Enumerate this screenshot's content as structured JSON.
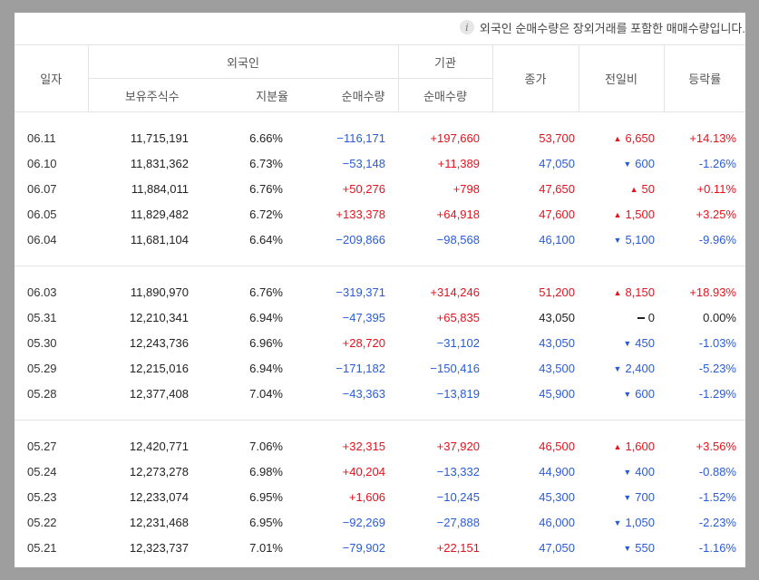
{
  "notice": "외국인 순매수량은 장외거래를 포함한 매매수량입니다.",
  "headers": {
    "date": "일자",
    "foreign": "외국인",
    "institution": "기관",
    "holdings": "보유주식수",
    "ratio": "지분율",
    "foreign_net": "순매수량",
    "inst_net": "순매수량",
    "close": "종가",
    "change": "전일비",
    "rate": "등락률"
  },
  "groups": [
    [
      {
        "date": "06.11",
        "holdings": "11,715,191",
        "ratio": "6.66%",
        "fnet": "−116,171",
        "fdir": "blue",
        "inet": "+197,660",
        "idir": "red",
        "close": "53,700",
        "cdir": "red",
        "arrow": "▲",
        "change": "6,650",
        "rate": "+14.13%"
      },
      {
        "date": "06.10",
        "holdings": "11,831,362",
        "ratio": "6.73%",
        "fnet": "−53,148",
        "fdir": "blue",
        "inet": "+11,389",
        "idir": "red",
        "close": "47,050",
        "cdir": "blue",
        "arrow": "▼",
        "change": "600",
        "rate": "-1.26%"
      },
      {
        "date": "06.07",
        "holdings": "11,884,011",
        "ratio": "6.76%",
        "fnet": "+50,276",
        "fdir": "red",
        "inet": "+798",
        "idir": "red",
        "close": "47,650",
        "cdir": "red",
        "arrow": "▲",
        "change": "50",
        "rate": "+0.11%"
      },
      {
        "date": "06.05",
        "holdings": "11,829,482",
        "ratio": "6.72%",
        "fnet": "+133,378",
        "fdir": "red",
        "inet": "+64,918",
        "idir": "red",
        "close": "47,600",
        "cdir": "red",
        "arrow": "▲",
        "change": "1,500",
        "rate": "+3.25%"
      },
      {
        "date": "06.04",
        "holdings": "11,681,104",
        "ratio": "6.64%",
        "fnet": "−209,866",
        "fdir": "blue",
        "inet": "−98,568",
        "idir": "blue",
        "close": "46,100",
        "cdir": "blue",
        "arrow": "▼",
        "change": "5,100",
        "rate": "-9.96%"
      }
    ],
    [
      {
        "date": "06.03",
        "holdings": "11,890,970",
        "ratio": "6.76%",
        "fnet": "−319,371",
        "fdir": "blue",
        "inet": "+314,246",
        "idir": "red",
        "close": "51,200",
        "cdir": "red",
        "arrow": "▲",
        "change": "8,150",
        "rate": "+18.93%"
      },
      {
        "date": "05.31",
        "holdings": "12,210,341",
        "ratio": "6.94%",
        "fnet": "−47,395",
        "fdir": "blue",
        "inet": "+65,835",
        "idir": "red",
        "close": "43,050",
        "cdir": "black",
        "arrow": "",
        "change": "0",
        "rate": "0.00%"
      },
      {
        "date": "05.30",
        "holdings": "12,243,736",
        "ratio": "6.96%",
        "fnet": "+28,720",
        "fdir": "red",
        "inet": "−31,102",
        "idir": "blue",
        "close": "43,050",
        "cdir": "blue",
        "arrow": "▼",
        "change": "450",
        "rate": "-1.03%"
      },
      {
        "date": "05.29",
        "holdings": "12,215,016",
        "ratio": "6.94%",
        "fnet": "−171,182",
        "fdir": "blue",
        "inet": "−150,416",
        "idir": "blue",
        "close": "43,500",
        "cdir": "blue",
        "arrow": "▼",
        "change": "2,400",
        "rate": "-5.23%"
      },
      {
        "date": "05.28",
        "holdings": "12,377,408",
        "ratio": "7.04%",
        "fnet": "−43,363",
        "fdir": "blue",
        "inet": "−13,819",
        "idir": "blue",
        "close": "45,900",
        "cdir": "blue",
        "arrow": "▼",
        "change": "600",
        "rate": "-1.29%"
      }
    ],
    [
      {
        "date": "05.27",
        "holdings": "12,420,771",
        "ratio": "7.06%",
        "fnet": "+32,315",
        "fdir": "red",
        "inet": "+37,920",
        "idir": "red",
        "close": "46,500",
        "cdir": "red",
        "arrow": "▲",
        "change": "1,600",
        "rate": "+3.56%"
      },
      {
        "date": "05.24",
        "holdings": "12,273,278",
        "ratio": "6.98%",
        "fnet": "+40,204",
        "fdir": "red",
        "inet": "−13,332",
        "idir": "blue",
        "close": "44,900",
        "cdir": "blue",
        "arrow": "▼",
        "change": "400",
        "rate": "-0.88%"
      },
      {
        "date": "05.23",
        "holdings": "12,233,074",
        "ratio": "6.95%",
        "fnet": "+1,606",
        "fdir": "red",
        "inet": "−10,245",
        "idir": "blue",
        "close": "45,300",
        "cdir": "blue",
        "arrow": "▼",
        "change": "700",
        "rate": "-1.52%"
      },
      {
        "date": "05.22",
        "holdings": "12,231,468",
        "ratio": "6.95%",
        "fnet": "−92,269",
        "fdir": "blue",
        "inet": "−27,888",
        "idir": "blue",
        "close": "46,000",
        "cdir": "blue",
        "arrow": "▼",
        "change": "1,050",
        "rate": "-2.23%"
      },
      {
        "date": "05.21",
        "holdings": "12,323,737",
        "ratio": "7.01%",
        "fnet": "−79,902",
        "fdir": "blue",
        "inet": "+22,151",
        "idir": "red",
        "close": "47,050",
        "cdir": "blue",
        "arrow": "▼",
        "change": "550",
        "rate": "-1.16%"
      }
    ]
  ]
}
